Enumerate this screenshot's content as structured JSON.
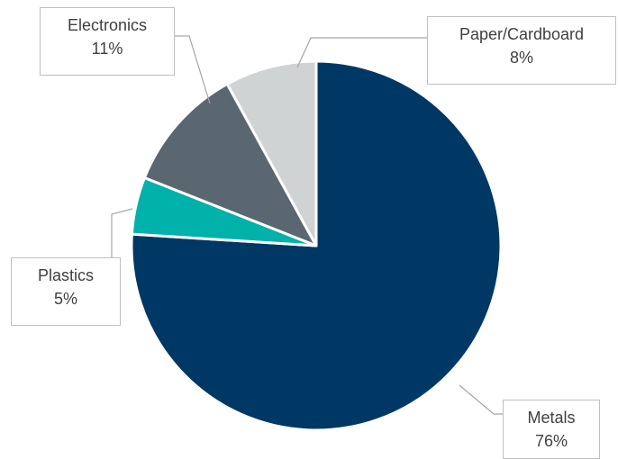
{
  "chart_data": {
    "type": "pie",
    "slices": [
      {
        "label": "Metals",
        "value": 76,
        "value_label": "76%",
        "color": "#003865"
      },
      {
        "label": "Plastics",
        "value": 5,
        "value_label": "5%",
        "color": "#00b2a9"
      },
      {
        "label": "Electronics",
        "value": 11,
        "value_label": "11%",
        "color": "#5b6770"
      },
      {
        "label": "Paper/Cardboard",
        "value": 8,
        "value_label": "8%",
        "color": "#d0d3d4"
      }
    ],
    "start_angle": "12 o'clock",
    "direction": "clockwise",
    "legend": "none",
    "data_labels": "callout boxes with leader lines"
  }
}
